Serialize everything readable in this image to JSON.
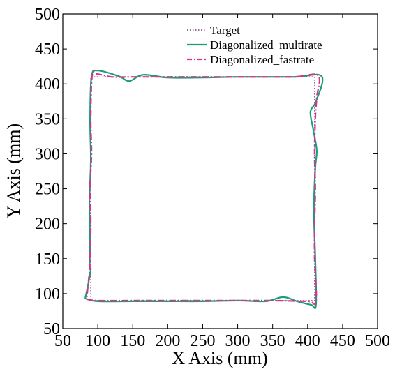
{
  "chart_data": {
    "type": "line",
    "title": "",
    "xlabel": "X Axis (mm)",
    "ylabel": "Y Axis (mm)",
    "xlim": [
      50,
      500
    ],
    "ylim": [
      50,
      500
    ],
    "xticks": [
      50,
      100,
      150,
      200,
      250,
      300,
      350,
      400,
      450,
      500
    ],
    "yticks": [
      50,
      100,
      150,
      200,
      250,
      300,
      350,
      400,
      450,
      500
    ],
    "grid": false,
    "legend_position": "top-right",
    "series": [
      {
        "name": "Target",
        "color": "#7a3d7a",
        "style": "dotted",
        "x": [
          90,
          410,
          410,
          90,
          90
        ],
        "y": [
          90,
          90,
          410,
          410,
          90
        ]
      },
      {
        "name": "Diagonalized_multirate",
        "color": "#1a9e77",
        "style": "solid",
        "x": [
          82,
          100,
          150,
          200,
          250,
          300,
          340,
          365,
          385,
          405,
          412,
          411,
          409,
          411,
          413,
          408,
          404,
          412,
          420,
          380,
          300,
          250,
          200,
          165,
          145,
          130,
          100,
          91,
          89,
          90,
          88,
          89,
          88,
          90,
          86,
          82
        ],
        "y": [
          93,
          89,
          89,
          89,
          89,
          90,
          89,
          95,
          89,
          84,
          84,
          150,
          220,
          280,
          305,
          335,
          360,
          375,
          411,
          410,
          410,
          409,
          409,
          413,
          404,
          411,
          419,
          410,
          350,
          290,
          230,
          170,
          140,
          135,
          112,
          93
        ]
      },
      {
        "name": "Diagonalized_fastrate",
        "color": "#d9338f",
        "style": "dashdot",
        "x": [
          84,
          100,
          150,
          200,
          250,
          300,
          350,
          400,
          412,
          410,
          410,
          411,
          410,
          411,
          413,
          415,
          380,
          300,
          250,
          200,
          150,
          120,
          100,
          92,
          90,
          91,
          89,
          90,
          89,
          88,
          84
        ],
        "y": [
          92,
          90,
          90,
          90,
          90,
          90,
          90,
          89,
          89,
          150,
          200,
          250,
          300,
          350,
          380,
          412,
          410,
          410,
          410,
          410,
          410,
          410,
          414,
          412,
          350,
          300,
          250,
          200,
          150,
          130,
          92
        ]
      }
    ]
  }
}
